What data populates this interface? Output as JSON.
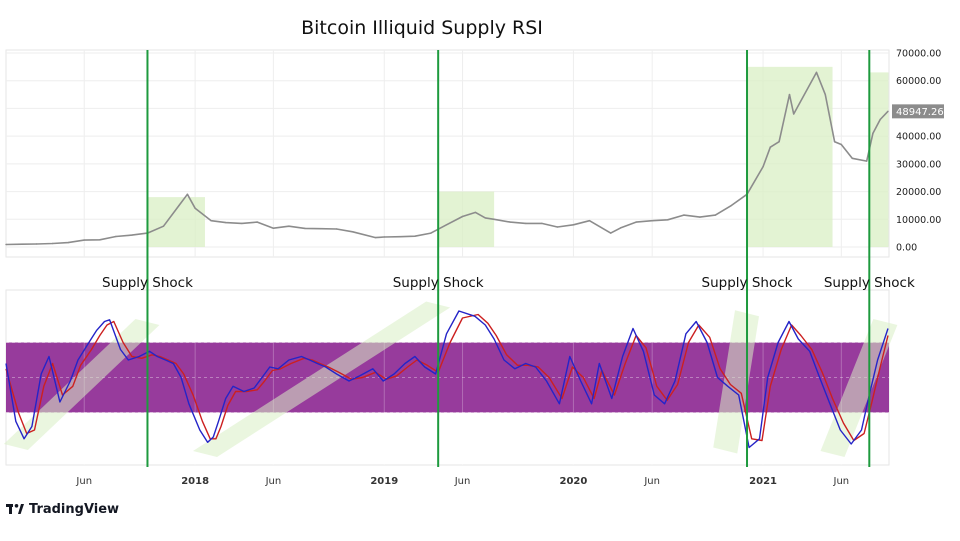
{
  "brand": {
    "name": "TradingView",
    "logo_icon": "tradingview-logo-icon"
  },
  "colors": {
    "price_line": "#8c8c8c",
    "rsi_fast": "#2424c8",
    "rsi_slow": "#cc2020",
    "rsi_band": "#8e2a94",
    "highlight": "#d9efc4",
    "shock_line": "#1e9a3e",
    "last_price_bg": "#8c8c8c"
  },
  "chart_data": [
    {
      "type": "line",
      "title": "Bitcoin Illiquid Supply RSI",
      "ylim": [
        0,
        70000
      ],
      "y_ticks": [
        "70000.00",
        "60000.00",
        "50000.00",
        "40000.00",
        "30000.00",
        "20000.00",
        "10000.00",
        "0.00"
      ],
      "last_price": "48947.26",
      "grid": true,
      "series": [
        {
          "x": [
            "2017-01-01",
            "2017-02-01",
            "2017-03-01",
            "2017-04-01",
            "2017-05-01",
            "2017-06-01",
            "2017-07-01",
            "2017-08-01",
            "2017-09-01",
            "2017-10-01",
            "2017-11-01",
            "2017-12-01",
            "2017-12-17",
            "2018-01-01",
            "2018-02-01",
            "2018-03-01",
            "2018-04-01",
            "2018-05-01",
            "2018-06-01",
            "2018-07-01",
            "2018-08-01",
            "2018-09-01",
            "2018-10-01",
            "2018-11-01",
            "2018-12-15",
            "2019-01-01",
            "2019-02-01",
            "2019-03-01",
            "2019-04-01",
            "2019-05-01",
            "2019-06-01",
            "2019-06-26",
            "2019-07-15",
            "2019-08-01",
            "2019-09-01",
            "2019-10-01",
            "2019-11-01",
            "2019-12-01",
            "2020-01-01",
            "2020-02-01",
            "2020-03-13",
            "2020-04-01",
            "2020-05-01",
            "2020-06-01",
            "2020-07-01",
            "2020-08-01",
            "2020-09-01",
            "2020-10-01",
            "2020-11-01",
            "2020-12-01",
            "2021-01-01",
            "2021-01-15",
            "2021-02-01",
            "2021-02-21",
            "2021-03-01",
            "2021-04-14",
            "2021-05-01",
            "2021-05-19",
            "2021-06-01",
            "2021-06-22",
            "2021-07-20",
            "2021-08-01",
            "2021-08-15",
            "2021-08-30"
          ],
          "values": [
            900,
            1000,
            1100,
            1250,
            1600,
            2500,
            2600,
            3800,
            4300,
            5000,
            7500,
            15000,
            19000,
            14000,
            9500,
            8800,
            8500,
            9000,
            6800,
            7500,
            6700,
            6600,
            6500,
            5500,
            3400,
            3600,
            3700,
            3900,
            5000,
            8000,
            11000,
            12500,
            10500,
            10000,
            9000,
            8500,
            8500,
            7200,
            8000,
            9500,
            5000,
            6900,
            9000,
            9500,
            9800,
            11500,
            10800,
            11500,
            15000,
            19000,
            29000,
            36000,
            38000,
            55000,
            48000,
            63000,
            55000,
            38000,
            37000,
            32000,
            31000,
            41000,
            46000,
            48947
          ]
        }
      ]
    },
    {
      "type": "line",
      "title": "",
      "ylim": [
        0,
        100
      ],
      "band": [
        30,
        70
      ],
      "grid": true,
      "x_ticks": [
        "Jun",
        "2018",
        "Jun",
        "2019",
        "Jun",
        "2020",
        "Jun",
        "2021",
        "Jun"
      ],
      "series": [
        {
          "x": [
            "2017-01-01",
            "2017-01-20",
            "2017-02-05",
            "2017-02-20",
            "2017-03-10",
            "2017-03-25",
            "2017-04-15",
            "2017-05-05",
            "2017-05-20",
            "2017-06-10",
            "2017-06-25",
            "2017-07-10",
            "2017-07-20",
            "2017-08-10",
            "2017-08-25",
            "2017-09-15",
            "2017-10-05",
            "2017-10-20",
            "2017-11-05",
            "2017-11-20",
            "2017-12-05",
            "2017-12-20",
            "2018-01-10",
            "2018-01-25",
            "2018-02-05",
            "2018-02-15",
            "2018-03-01",
            "2018-03-15",
            "2018-04-05",
            "2018-04-25",
            "2018-05-10",
            "2018-05-25",
            "2018-06-10",
            "2018-07-01",
            "2018-07-25",
            "2018-08-10",
            "2018-08-25",
            "2018-09-10",
            "2018-10-01",
            "2018-10-25",
            "2018-11-15",
            "2018-12-10",
            "2018-12-30",
            "2019-01-20",
            "2019-02-10",
            "2019-03-01",
            "2019-03-20",
            "2019-04-10",
            "2019-05-01",
            "2019-05-25",
            "2019-06-25",
            "2019-07-15",
            "2019-08-01",
            "2019-08-20",
            "2019-09-10",
            "2019-10-01",
            "2019-10-20",
            "2019-11-10",
            "2019-12-05",
            "2019-12-25",
            "2020-01-15",
            "2020-02-05",
            "2020-02-20",
            "2020-03-15",
            "2020-04-05",
            "2020-04-25",
            "2020-05-15",
            "2020-06-05",
            "2020-06-25",
            "2020-07-15",
            "2020-08-05",
            "2020-08-25",
            "2020-09-15",
            "2020-10-05",
            "2020-10-25",
            "2020-11-15",
            "2020-12-05",
            "2020-12-25",
            "2021-01-10",
            "2021-01-30",
            "2021-02-20",
            "2021-03-10",
            "2021-04-01",
            "2021-04-20",
            "2021-05-10",
            "2021-05-30",
            "2021-06-20",
            "2021-07-10",
            "2021-07-25",
            "2021-08-10",
            "2021-08-30"
          ],
          "values": [
            58,
            25,
            15,
            22,
            52,
            62,
            36,
            48,
            60,
            70,
            77,
            82,
            83,
            66,
            60,
            62,
            65,
            62,
            60,
            58,
            50,
            35,
            20,
            13,
            16,
            25,
            38,
            45,
            42,
            44,
            50,
            56,
            55,
            60,
            62,
            60,
            58,
            56,
            52,
            48,
            51,
            55,
            48,
            52,
            58,
            62,
            56,
            52,
            75,
            88,
            85,
            80,
            72,
            60,
            55,
            58,
            56,
            48,
            35,
            62,
            48,
            35,
            58,
            38,
            62,
            78,
            65,
            40,
            35,
            48,
            75,
            82,
            70,
            50,
            45,
            40,
            10,
            15,
            50,
            70,
            82,
            72,
            65,
            50,
            35,
            20,
            12,
            20,
            40,
            60,
            78
          ]
        },
        {
          "x": [
            "2017-01-01",
            "2017-01-25",
            "2017-02-10",
            "2017-02-25",
            "2017-03-15",
            "2017-04-01",
            "2017-04-20",
            "2017-05-10",
            "2017-05-25",
            "2017-06-15",
            "2017-07-01",
            "2017-07-15",
            "2017-07-28",
            "2017-08-15",
            "2017-09-01",
            "2017-09-20",
            "2017-10-10",
            "2017-10-25",
            "2017-11-10",
            "2017-11-25",
            "2017-12-10",
            "2017-12-28",
            "2018-01-15",
            "2018-01-30",
            "2018-02-10",
            "2018-02-20",
            "2018-03-05",
            "2018-03-20",
            "2018-04-10",
            "2018-05-01",
            "2018-05-15",
            "2018-05-30",
            "2018-06-15",
            "2018-07-05",
            "2018-07-30",
            "2018-08-15",
            "2018-08-30",
            "2018-09-15",
            "2018-10-05",
            "2018-10-30",
            "2018-11-20",
            "2018-12-15",
            "2019-01-05",
            "2019-01-25",
            "2019-02-15",
            "2019-03-05",
            "2019-03-25",
            "2019-04-15",
            "2019-05-08",
            "2019-06-01",
            "2019-07-01",
            "2019-07-20",
            "2019-08-05",
            "2019-08-25",
            "2019-09-15",
            "2019-10-05",
            "2019-10-25",
            "2019-11-15",
            "2019-12-10",
            "2019-12-30",
            "2020-01-20",
            "2020-02-10",
            "2020-02-25",
            "2020-03-20",
            "2020-04-10",
            "2020-05-01",
            "2020-05-20",
            "2020-06-10",
            "2020-06-30",
            "2020-07-20",
            "2020-08-10",
            "2020-08-30",
            "2020-09-20",
            "2020-10-10",
            "2020-10-30",
            "2020-11-20",
            "2020-12-10",
            "2020-12-30",
            "2021-01-15",
            "2021-02-05",
            "2021-02-25",
            "2021-03-15",
            "2021-04-05",
            "2021-04-25",
            "2021-05-15",
            "2021-06-05",
            "2021-06-25",
            "2021-07-15",
            "2021-07-30",
            "2021-08-15",
            "2021-08-30"
          ],
          "values": [
            55,
            30,
            18,
            20,
            45,
            58,
            40,
            45,
            57,
            66,
            74,
            80,
            82,
            70,
            62,
            61,
            63,
            62,
            60,
            58,
            52,
            40,
            25,
            15,
            15,
            22,
            34,
            42,
            42,
            43,
            48,
            54,
            55,
            58,
            61,
            60,
            58,
            56,
            53,
            49,
            50,
            53,
            49,
            51,
            56,
            60,
            57,
            53,
            70,
            84,
            86,
            81,
            74,
            63,
            57,
            57,
            56,
            50,
            38,
            56,
            50,
            38,
            54,
            40,
            58,
            74,
            67,
            45,
            37,
            46,
            70,
            80,
            73,
            55,
            46,
            41,
            15,
            14,
            45,
            66,
            80,
            74,
            66,
            53,
            38,
            24,
            14,
            18,
            36,
            56,
            74
          ]
        }
      ]
    }
  ],
  "supply_shocks": [
    {
      "label": "Supply Shock",
      "date": "2017-10-01"
    },
    {
      "label": "Supply Shock",
      "date": "2019-04-15"
    },
    {
      "label": "Supply Shock",
      "date": "2020-12-01"
    },
    {
      "label": "Supply Shock",
      "date": "2021-07-25"
    }
  ]
}
